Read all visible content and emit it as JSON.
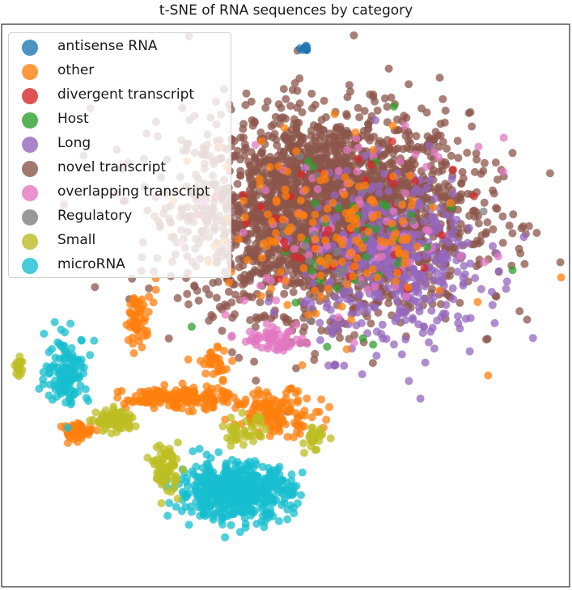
{
  "chart_data": {
    "type": "scatter",
    "title": "t-SNE of RNA sequences by category",
    "xlabel": "",
    "ylabel": "",
    "grid": false,
    "axis_ticks": false,
    "legend": "top-left",
    "xlim": [
      -10,
      10
    ],
    "ylim": [
      -10,
      10
    ],
    "series": [
      {
        "name": "antisense RNA",
        "color": "#1f77b4"
      },
      {
        "name": "other",
        "color": "#ff7f0e"
      },
      {
        "name": "divergent transcript",
        "color": "#d62728"
      },
      {
        "name": "Host",
        "color": "#2ca02c"
      },
      {
        "name": "Long",
        "color": "#9467bd"
      },
      {
        "name": "novel transcript",
        "color": "#8c564b"
      },
      {
        "name": "overlapping transcript",
        "color": "#e377c2"
      },
      {
        "name": "Regulatory",
        "color": "#7f7f7f"
      },
      {
        "name": "Small",
        "color": "#bcbd22"
      },
      {
        "name": "microRNA",
        "color": "#17becf"
      }
    ],
    "clusters": [
      {
        "series": "novel transcript",
        "center": [
          1.5,
          3.3
        ],
        "spread": [
          4.5,
          3.2
        ],
        "count": 2600
      },
      {
        "series": "Long",
        "center": [
          3.8,
          1.5
        ],
        "spread": [
          2.8,
          2.8
        ],
        "count": 450
      },
      {
        "series": "overlapping transcript",
        "center": [
          2.5,
          2.5
        ],
        "spread": [
          4.0,
          3.0
        ],
        "count": 90
      },
      {
        "series": "Host",
        "center": [
          2.0,
          2.5
        ],
        "spread": [
          4.0,
          3.0
        ],
        "count": 40
      },
      {
        "series": "divergent transcript",
        "center": [
          2.0,
          2.5
        ],
        "spread": [
          4.0,
          3.0
        ],
        "count": 40
      },
      {
        "series": "Regulatory",
        "center": [
          2.0,
          2.5
        ],
        "spread": [
          4.0,
          3.0
        ],
        "count": 20
      },
      {
        "series": "other",
        "center": [
          1.5,
          2.5
        ],
        "spread": [
          4.0,
          3.0
        ],
        "count": 150
      },
      {
        "series": "other",
        "center": [
          -3.8,
          -3.3
        ],
        "spread": [
          1.7,
          0.35
        ],
        "count": 160
      },
      {
        "series": "other",
        "center": [
          -0.3,
          -3.8
        ],
        "spread": [
          1.3,
          0.7
        ],
        "count": 130
      },
      {
        "series": "other",
        "center": [
          -7.3,
          -4.5
        ],
        "spread": [
          0.5,
          0.3
        ],
        "count": 50
      },
      {
        "series": "other",
        "center": [
          -5.2,
          -0.5
        ],
        "spread": [
          0.4,
          0.8
        ],
        "count": 50
      },
      {
        "series": "other",
        "center": [
          -2.4,
          -2.0
        ],
        "spread": [
          0.5,
          0.5
        ],
        "count": 30
      },
      {
        "series": "microRNA",
        "center": [
          -1.8,
          -6.6
        ],
        "spread": [
          1.8,
          0.9
        ],
        "count": 550
      },
      {
        "series": "microRNA",
        "center": [
          -7.7,
          -2.3
        ],
        "spread": [
          0.7,
          1.1
        ],
        "count": 130
      },
      {
        "series": "Small",
        "center": [
          -6.0,
          -4.1
        ],
        "spread": [
          0.6,
          0.35
        ],
        "count": 90
      },
      {
        "series": "Small",
        "center": [
          -4.2,
          -5.8
        ],
        "spread": [
          0.4,
          0.8
        ],
        "count": 70
      },
      {
        "series": "Small",
        "center": [
          -9.4,
          -2.1
        ],
        "spread": [
          0.15,
          0.3
        ],
        "count": 20
      },
      {
        "series": "Small",
        "center": [
          -1.5,
          -4.5
        ],
        "spread": [
          0.7,
          0.5
        ],
        "count": 40
      },
      {
        "series": "Small",
        "center": [
          1.0,
          -4.8
        ],
        "spread": [
          0.3,
          0.4
        ],
        "count": 30
      },
      {
        "series": "overlapping transcript",
        "center": [
          -0.5,
          -1.2
        ],
        "spread": [
          1.0,
          0.35
        ],
        "count": 60
      },
      {
        "series": "antisense RNA",
        "center": [
          0.7,
          9.1
        ],
        "spread": [
          0.12,
          0.1
        ],
        "count": 12
      }
    ]
  }
}
